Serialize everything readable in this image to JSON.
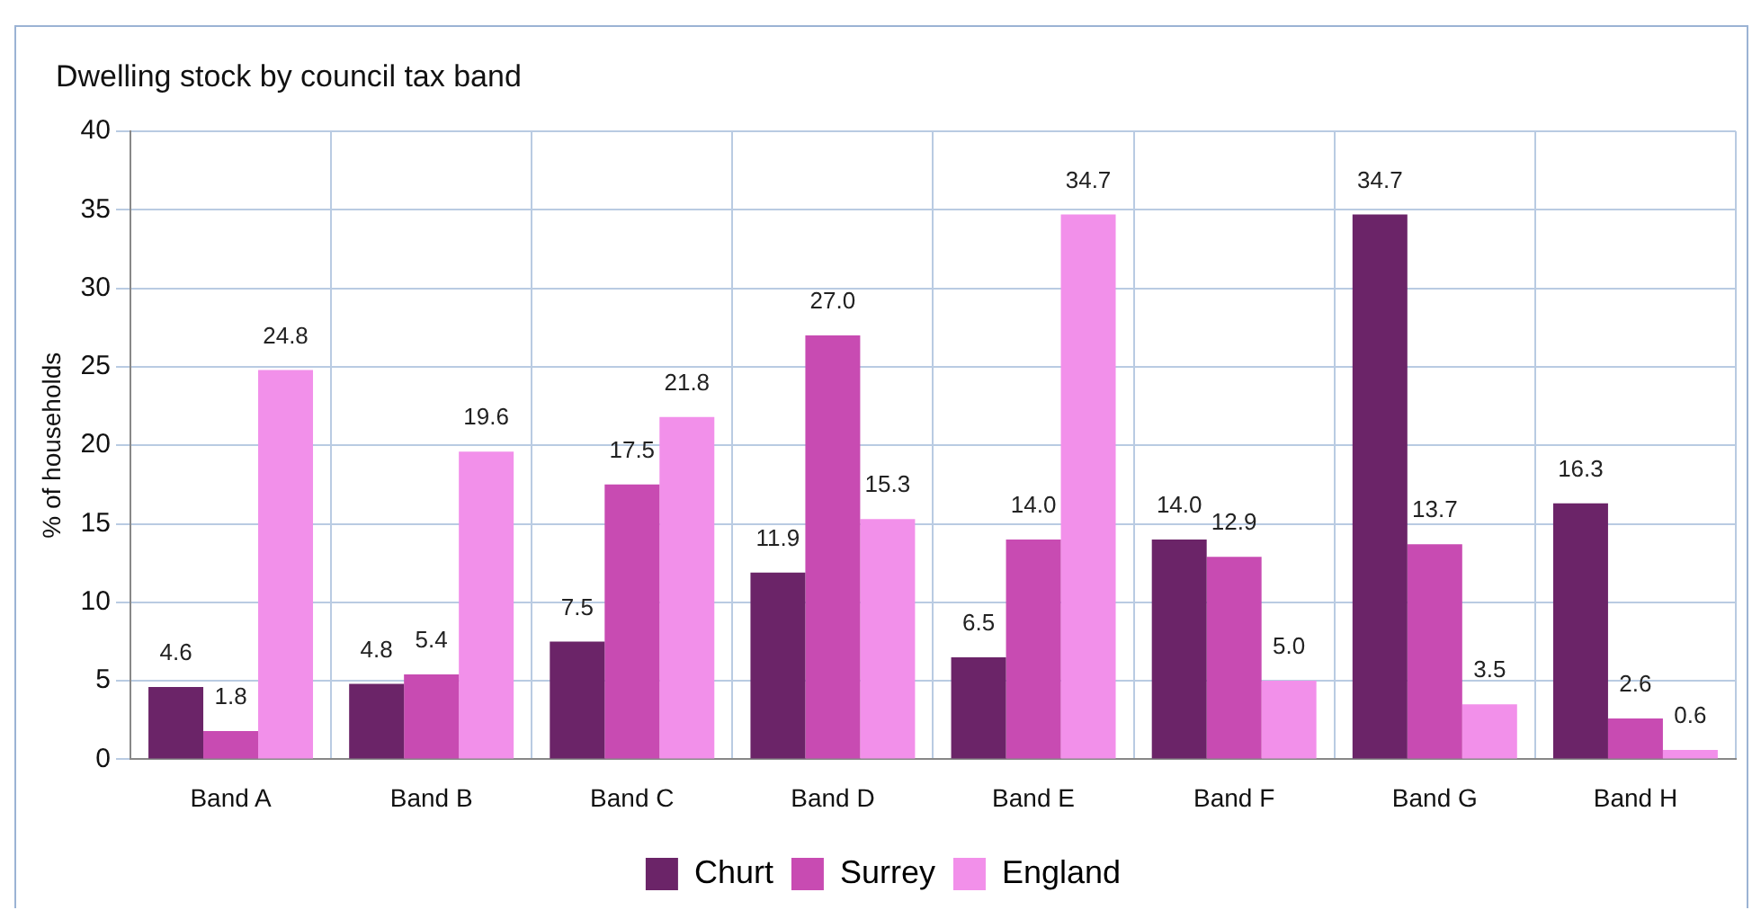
{
  "chart_data": {
    "type": "bar",
    "title": "Dwelling stock by council tax band",
    "ylabel": "% of households",
    "categories": [
      "Band A",
      "Band B",
      "Band C",
      "Band D",
      "Band E",
      "Band F",
      "Band G",
      "Band H"
    ],
    "series": [
      {
        "name": "Churt",
        "color": "#6b2468",
        "values": [
          4.6,
          4.8,
          7.5,
          11.9,
          6.5,
          14.0,
          34.7,
          16.3
        ],
        "value_labels": [
          "4.6",
          "4.8",
          "7.5",
          "11.9",
          "6.5",
          "14.0",
          "34.7",
          "16.3"
        ]
      },
      {
        "name": "Surrey",
        "color": "#c84bb2",
        "values": [
          1.8,
          5.4,
          17.5,
          27.0,
          14.0,
          12.9,
          13.7,
          2.6
        ],
        "value_labels": [
          "1.8",
          "5.4",
          "17.5",
          "27.0",
          "14.0",
          "12.9",
          "13.7",
          "2.6"
        ]
      },
      {
        "name": "England",
        "color": "#f290ea",
        "values": [
          24.8,
          19.6,
          21.8,
          15.3,
          34.7,
          5.0,
          3.5,
          0.6
        ],
        "value_labels": [
          "24.8",
          "19.6",
          "21.8",
          "15.3",
          "34.7",
          "5.0",
          "3.5",
          "0.6"
        ]
      }
    ],
    "ylim": [
      0,
      40
    ],
    "yticks": [
      0,
      5,
      10,
      15,
      20,
      25,
      30,
      35,
      40
    ],
    "grid": true,
    "legend": "bottom"
  }
}
